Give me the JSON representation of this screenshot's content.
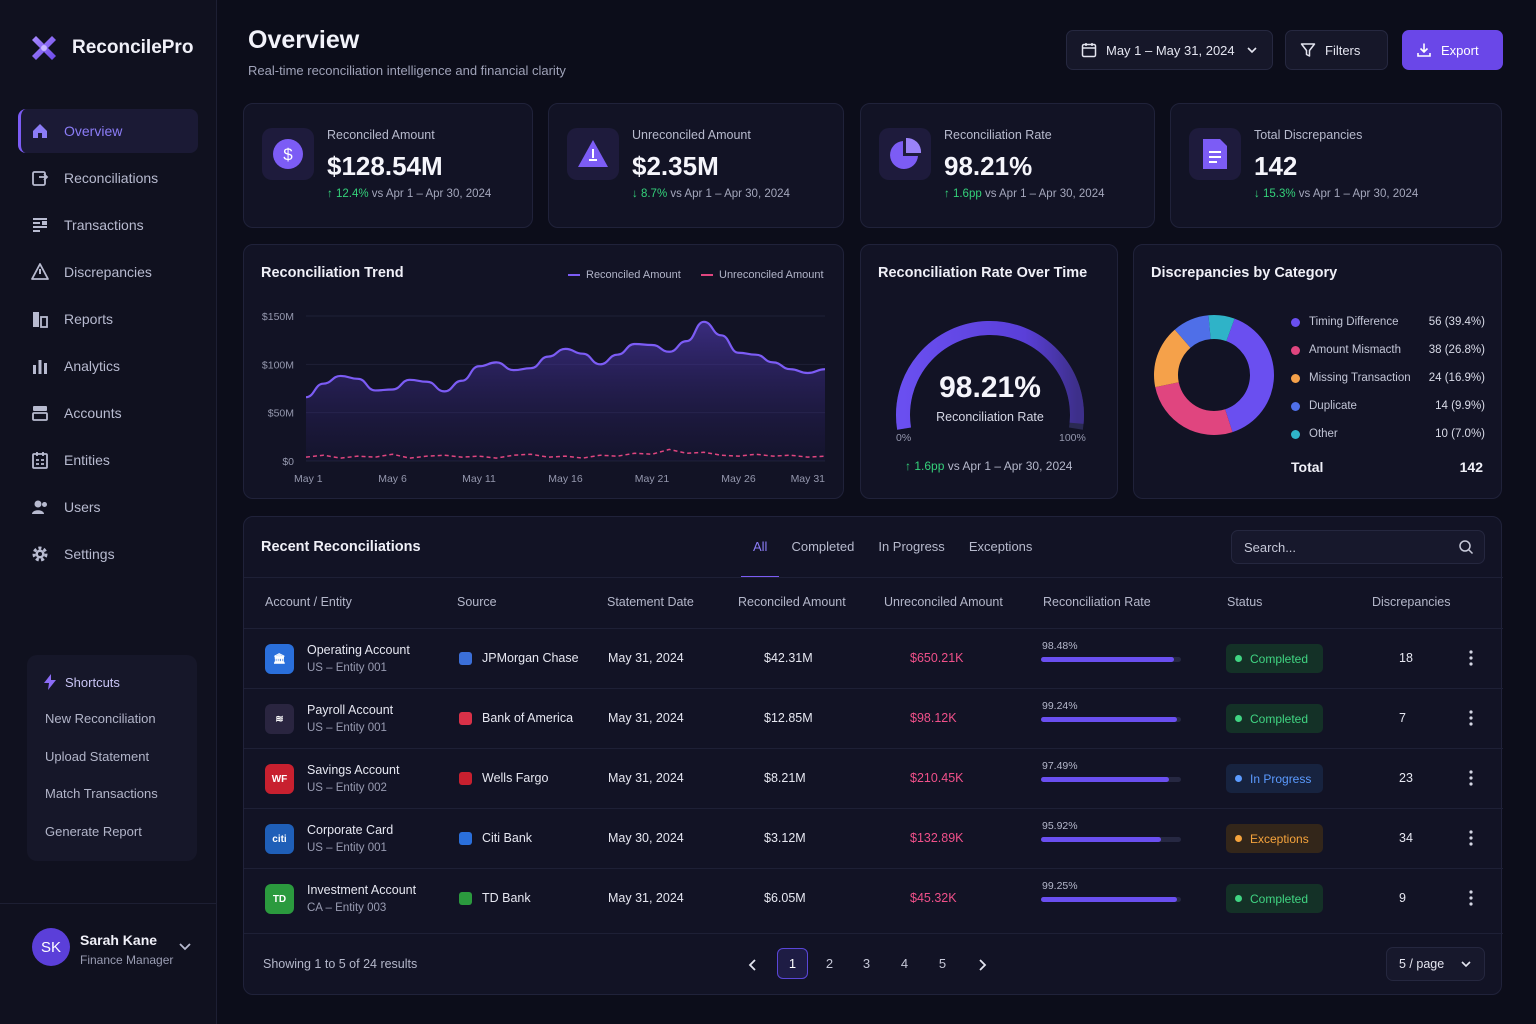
{
  "app": {
    "name": "ReconcilePro"
  },
  "sidebar": {
    "items": [
      {
        "label": "Overview",
        "icon": "home-icon",
        "active": true
      },
      {
        "label": "Reconciliations",
        "icon": "reconcile-icon"
      },
      {
        "label": "Transactions",
        "icon": "transactions-icon"
      },
      {
        "label": "Discrepancies",
        "icon": "warning-icon"
      },
      {
        "label": "Reports",
        "icon": "reports-icon"
      },
      {
        "label": "Analytics",
        "icon": "analytics-icon"
      },
      {
        "label": "Accounts",
        "icon": "accounts-icon"
      },
      {
        "label": "Entities",
        "icon": "entities-icon"
      },
      {
        "label": "Users",
        "icon": "users-icon"
      },
      {
        "label": "Settings",
        "icon": "gear-icon"
      }
    ],
    "shortcuts": {
      "title": "Shortcuts",
      "items": [
        "New Reconciliation",
        "Upload Statement",
        "Match Transactions",
        "Generate Report"
      ]
    },
    "user": {
      "initials": "SK",
      "name": "Sarah Kane",
      "role": "Finance Manager"
    }
  },
  "header": {
    "title": "Overview",
    "subtitle": "Real-time reconciliation intelligence and financial clarity",
    "date_range": "May 1 – May 31, 2024",
    "filters_label": "Filters",
    "export_label": "Export"
  },
  "kpis": [
    {
      "label": "Reconciled Amount",
      "value": "$128.54M",
      "arrow": "↑",
      "delta": "12.4%",
      "compare": "vs Apr 1 – Apr 30, 2024"
    },
    {
      "label": "Unreconciled Amount",
      "value": "$2.35M",
      "arrow": "↓",
      "delta": "8.7%",
      "compare": "vs Apr 1 – Apr 30, 2024"
    },
    {
      "label": "Reconciliation Rate",
      "value": "98.21%",
      "arrow": "↑",
      "delta": "1.6pp",
      "compare": "vs Apr 1 – Apr 30, 2024"
    },
    {
      "label": "Total Discrepancies",
      "value": "142",
      "arrow": "↓",
      "delta": "15.3%",
      "compare": "vs Apr 1 – Apr 30, 2024"
    }
  ],
  "trend": {
    "title": "Reconciliation Trend",
    "legend": [
      "Reconciled Amount",
      "Unreconciled Amount"
    ]
  },
  "gauge": {
    "title": "Reconciliation Rate Over Time",
    "value": "98.21%",
    "fraction": 0.9821,
    "label": "Reconciliation Rate",
    "min_label": "0%",
    "max_label": "100%",
    "delta_arrow": "↑",
    "delta": "1.6pp",
    "compare": "vs Apr 1 – Apr 30, 2024"
  },
  "discrepancies": {
    "title": "Discrepancies by Category",
    "total_label": "Total",
    "total": "142"
  },
  "chart_data": [
    {
      "type": "area",
      "title": "Reconciliation Trend",
      "x_tick_labels": [
        "May 1",
        "May 6",
        "May 11",
        "May 16",
        "May 21",
        "May 26",
        "May 31"
      ],
      "y_tick_labels": [
        "$0",
        "$50M",
        "$100M",
        "$150M"
      ],
      "ylim": [
        0,
        150
      ],
      "x": [
        1,
        2,
        3,
        4,
        5,
        6,
        7,
        8,
        9,
        10,
        11,
        12,
        13,
        14,
        15,
        16,
        17,
        18,
        19,
        20,
        21,
        22,
        23,
        24,
        25,
        26,
        27,
        28,
        29,
        30,
        31
      ],
      "series": [
        {
          "name": "Reconciled Amount",
          "color": "#7c5cf5",
          "values": [
            66,
            80,
            88,
            85,
            73,
            74,
            84,
            82,
            72,
            83,
            98,
            102,
            94,
            96,
            108,
            116,
            111,
            100,
            110,
            121,
            120,
            113,
            124,
            144,
            130,
            112,
            110,
            102,
            95,
            91,
            95
          ]
        },
        {
          "name": "Unreconciled Amount",
          "color": "#e0457f",
          "values": [
            4,
            6,
            3,
            5,
            4,
            7,
            3,
            5,
            6,
            4,
            5,
            3,
            6,
            7,
            4,
            5,
            3,
            6,
            5,
            8,
            7,
            12,
            8,
            9,
            6,
            5,
            7,
            5,
            6,
            4,
            5
          ]
        }
      ],
      "grid": true,
      "legend": "top-right"
    },
    {
      "type": "pie",
      "title": "Discrepancies by Category",
      "categories": [
        "Timing Difference",
        "Amount Mismacth",
        "Missing Transaction",
        "Duplicate",
        "Other"
      ],
      "values": [
        56,
        38,
        24,
        14,
        10
      ],
      "labels": [
        "56 (39.4%)",
        "38 (26.8%)",
        "24 (16.9%)",
        "14 (9.9%)",
        "10 (7.0%)"
      ],
      "colors": [
        "#6a4ff0",
        "#e0457f",
        "#f5a14a",
        "#4f6fe8",
        "#2fb3c8"
      ],
      "legend": "right"
    }
  ],
  "table": {
    "title": "Recent Reconciliations",
    "tabs": [
      "All",
      "Completed",
      "In Progress",
      "Exceptions"
    ],
    "search_placeholder": "Search...",
    "columns": [
      "Account / Entity",
      "Source",
      "Statement Date",
      "Reconciled Amount",
      "Unreconciled Amount",
      "Reconciliation Rate",
      "Status",
      "Discrepancies"
    ],
    "rows": [
      {
        "account": "Operating Account",
        "entity": "US – Entity 001",
        "icon_text": "🏛",
        "icon_color": "#2a6fdb",
        "source": "JPMorgan Chase",
        "src_color": "#3b6fd8",
        "date": "May 31, 2024",
        "reconciled": "$42.31M",
        "unreconciled": "$650.21K",
        "rate": "98.48%",
        "rate_fraction": 0.9848,
        "status": "Completed",
        "status_kind": "c",
        "discrepancies": "18"
      },
      {
        "account": "Payroll Account",
        "entity": "US – Entity 001",
        "icon_text": "≋",
        "icon_color": "#2a2540",
        "source": "Bank of America",
        "src_color": "#d93148",
        "date": "May 31, 2024",
        "reconciled": "$12.85M",
        "unreconciled": "$98.12K",
        "rate": "99.24%",
        "rate_fraction": 0.9924,
        "status": "Completed",
        "status_kind": "c",
        "discrepancies": "7"
      },
      {
        "account": "Savings Account",
        "entity": "US – Entity 002",
        "icon_text": "WF",
        "icon_color": "#c8202f",
        "source": "Wells Fargo",
        "src_color": "#c8202f",
        "date": "May 31, 2024",
        "reconciled": "$8.21M",
        "unreconciled": "$210.45K",
        "rate": "97.49%",
        "rate_fraction": 0.9749,
        "status": "In Progress",
        "status_kind": "p",
        "discrepancies": "23"
      },
      {
        "account": "Corporate Card",
        "entity": "US – Entity 001",
        "icon_text": "citi",
        "icon_color": "#1f5fb8",
        "source": "Citi Bank",
        "src_color": "#2a6fdb",
        "date": "May 30, 2024",
        "reconciled": "$3.12M",
        "unreconciled": "$132.89K",
        "rate": "95.92%",
        "rate_fraction": 0.9592,
        "status": "Exceptions",
        "status_kind": "e",
        "discrepancies": "34"
      },
      {
        "account": "Investment Account",
        "entity": "CA – Entity 003",
        "icon_text": "TD",
        "icon_color": "#2b9a3e",
        "source": "TD Bank",
        "src_color": "#2b9a3e",
        "date": "May 31, 2024",
        "reconciled": "$6.05M",
        "unreconciled": "$45.32K",
        "rate": "99.25%",
        "rate_fraction": 0.9925,
        "status": "Completed",
        "status_kind": "c",
        "discrepancies": "9"
      }
    ],
    "footer_text": "Showing 1 to 5 of 24 results",
    "pages": [
      "1",
      "2",
      "3",
      "4",
      "5"
    ],
    "current_page": "1",
    "page_size": "5 / page"
  },
  "colors": {
    "accent": "#7c5cf5",
    "success": "#34d17a",
    "danger": "#f0508a",
    "warning": "#f5a33c",
    "info": "#5b9bff"
  }
}
